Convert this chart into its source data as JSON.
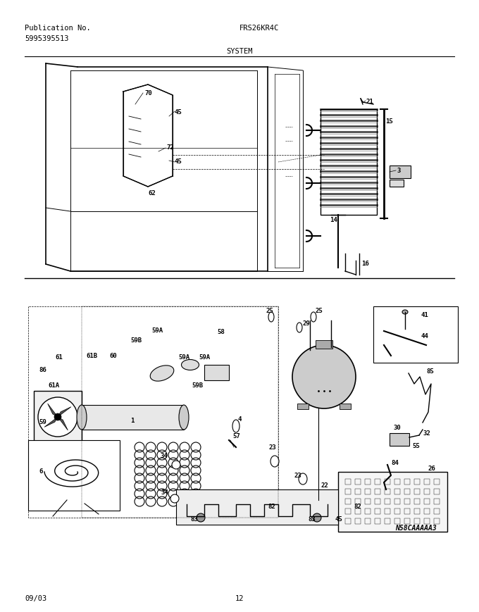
{
  "title_left_line1": "Publication No.",
  "title_left_line2": "5995395513",
  "title_center": "FRS26KR4C",
  "subtitle": "SYSTEM",
  "diagram_note": "N58CAAAAA3",
  "footer_left": "09/03",
  "footer_center": "12",
  "bg_color": "#ffffff",
  "line_color": "#000000",
  "text_color": "#000000",
  "fig_width": 6.8,
  "fig_height": 8.69,
  "dpi": 100
}
